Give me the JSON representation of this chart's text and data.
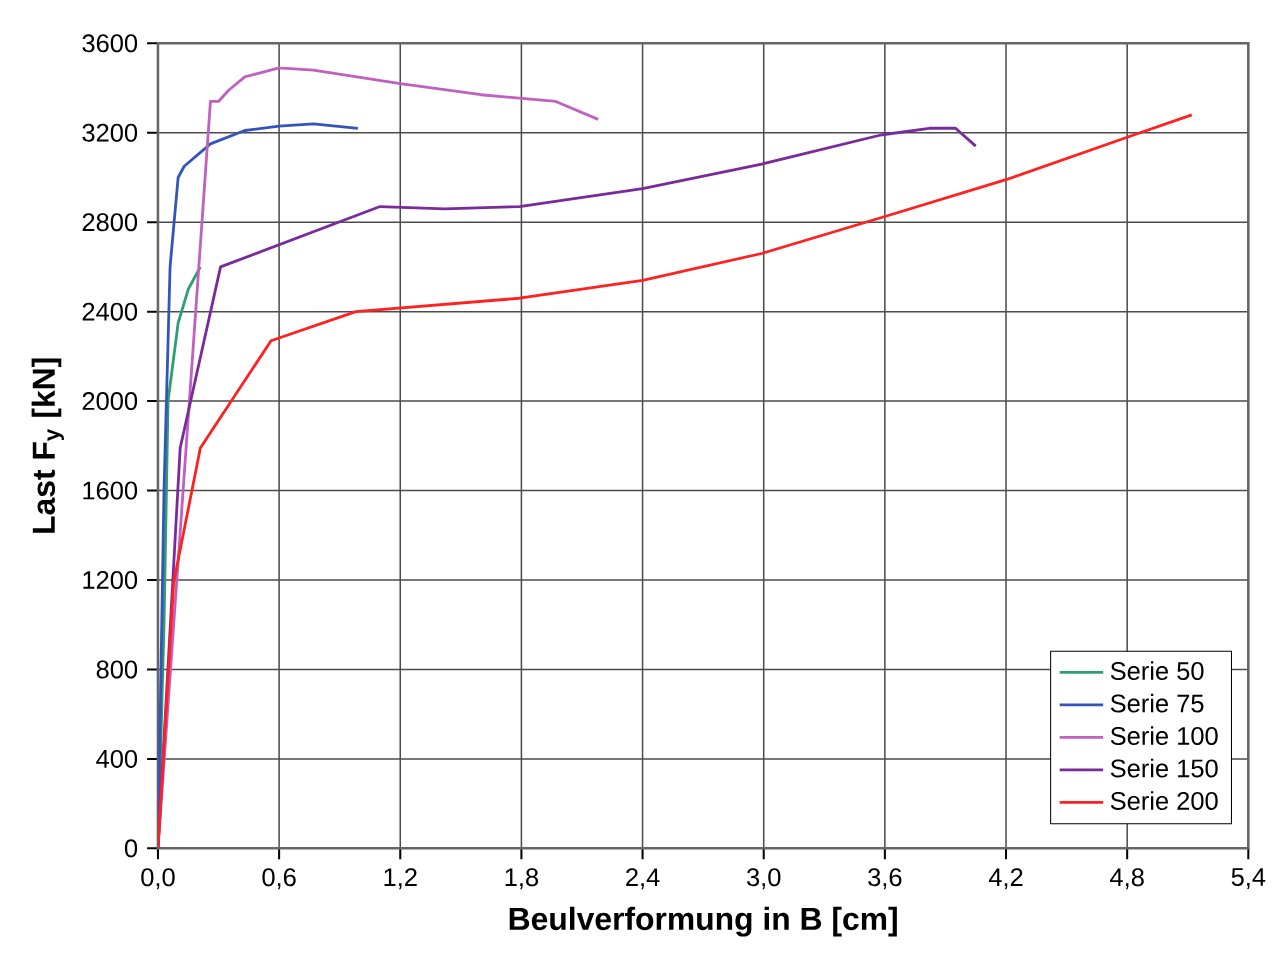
{
  "chart_data": {
    "type": "line",
    "xlabel": "Beulverformung in B  [cm]",
    "ylabel": "Last  F$_{y}$ [kN]",
    "xlim": [
      0,
      5.4
    ],
    "ylim": [
      0,
      3600
    ],
    "xticks": [
      {
        "value": 0,
        "label": "0,0"
      },
      {
        "value": 0.6,
        "label": "0,6"
      },
      {
        "value": 1.2,
        "label": "1,2"
      },
      {
        "value": 1.8,
        "label": "1,8"
      },
      {
        "value": 2.4,
        "label": "2,4"
      },
      {
        "value": 3.0,
        "label": "3,0"
      },
      {
        "value": 3.6,
        "label": "3,6"
      },
      {
        "value": 4.2,
        "label": "4,2"
      },
      {
        "value": 4.8,
        "label": "4,8"
      },
      {
        "value": 5.4,
        "label": "5,4"
      }
    ],
    "yticks": [
      0,
      400,
      800,
      1200,
      1600,
      2000,
      2400,
      2800,
      3200,
      3600
    ],
    "grid": true,
    "legend": "bottom right",
    "marker": "none",
    "series": [
      {
        "name": "Serie 50",
        "color": "#2e9e6e",
        "x": [
          0,
          0.03,
          0.05,
          0.1,
          0.15,
          0.21
        ],
        "values": [
          0,
          1000,
          2000,
          2350,
          2500,
          2600
        ]
      },
      {
        "name": "Serie 75",
        "color": "#3355bb",
        "x": [
          0,
          0.03,
          0.06,
          0.1,
          0.13,
          0.26,
          0.43,
          0.6,
          0.77,
          0.99
        ],
        "values": [
          0,
          1600,
          2600,
          3000,
          3050,
          3150,
          3210,
          3230,
          3240,
          3220
        ]
      },
      {
        "name": "Serie 100",
        "color": "#c060c0",
        "x": [
          0,
          0.26,
          0.3,
          0.35,
          0.43,
          0.6,
          0.77,
          1.2,
          1.6,
          1.97,
          2.18
        ],
        "values": [
          0,
          3340,
          3340,
          3390,
          3450,
          3490,
          3480,
          3420,
          3370,
          3340,
          3260
        ]
      },
      {
        "name": "Serie 150",
        "color": "#7a2a9a",
        "x": [
          0,
          0.11,
          0.31,
          1.1,
          1.42,
          1.79,
          2.4,
          2.99,
          3.58,
          3.82,
          3.95,
          4.05
        ],
        "values": [
          0,
          1790,
          2600,
          2870,
          2860,
          2870,
          2950,
          3060,
          3190,
          3220,
          3220,
          3140
        ]
      },
      {
        "name": "Serie 200",
        "color": "#ff2020",
        "x": [
          0,
          0.078,
          0.21,
          0.56,
          0.98,
          1.79,
          2.4,
          2.99,
          3.58,
          4.2,
          4.8,
          5.12
        ],
        "values": [
          0,
          1190,
          1790,
          2270,
          2400,
          2460,
          2540,
          2660,
          2820,
          2990,
          3180,
          3280
        ]
      }
    ]
  }
}
